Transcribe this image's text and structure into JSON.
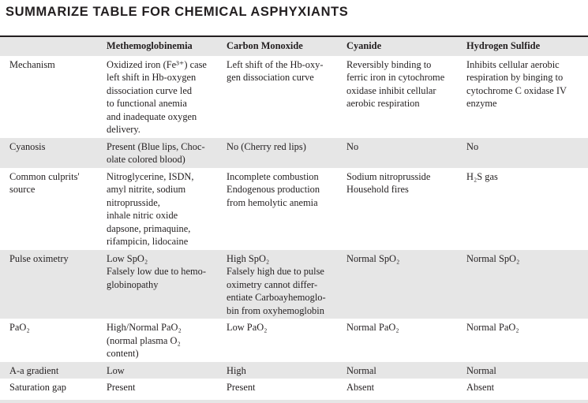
{
  "title": "SUMMARIZE TABLE FOR CHEMICAL ASPHYXIANTS",
  "colors": {
    "row_shade": "#e6e6e6",
    "text": "#231f20"
  },
  "table": {
    "headers": [
      "",
      "Methemoglobinemia",
      "Carbon Monoxide",
      "Cyanide",
      "Hydrogen Sulfide"
    ],
    "rows": [
      {
        "shade": false,
        "cells": [
          "Mechanism",
          "Oxidized iron (Fe³⁺) case\nleft shift in Hb-oxygen\ndissociation curve led\nto functional anemia\nand inadequate oxygen\ndelivery.",
          "Left shift of the Hb-oxy-\ngen dissociation curve",
          "Reversibly binding to\nferric iron in cytochrome\noxidase inhibit cellular\naerobic respiration",
          "Inhibits cellular aerobic\nrespiration by binging to\ncytochrome C oxidase IV\nenzyme"
        ]
      },
      {
        "shade": true,
        "cells": [
          "Cyanosis",
          "Present (Blue lips, Choc-\nolate colored blood)",
          "No (Cherry red lips)",
          "No",
          "No"
        ]
      },
      {
        "shade": false,
        "cells": [
          "Common culprits'\nsource",
          "Nitroglycerine, ISDN,\namyl nitrite, sodium\nnitroprusside,\ninhale nitric oxide\ndapsone, primaquine,\nrifampicin, lidocaine",
          "Incomplete combustion\nEndogenous production\nfrom hemolytic anemia",
          "Sodium nitroprusside\nHousehold fires",
          "H₂S gas"
        ]
      },
      {
        "shade": true,
        "cells": [
          "Pulse oximetry",
          "Low SpO₂\nFalsely low due to hemo-\nglobinopathy",
          "High SpO₂\nFalsely high due to pulse\noximetry cannot differ-\nentiate Carboayhemoglo-\nbin from oxyhemoglobin",
          "Normal SpO₂",
          "Normal SpO₂"
        ]
      },
      {
        "shade": false,
        "cells": [
          "PaO₂",
          "High/Normal PaO₂\n(normal plasma O₂\ncontent)",
          "Low PaO₂",
          "Normal PaO₂",
          "Normal PaO₂"
        ]
      },
      {
        "shade": true,
        "cells": [
          "A-a gradient",
          "Low",
          "High",
          "Normal",
          "Normal"
        ]
      },
      {
        "shade": false,
        "cells": [
          "Saturation gap",
          "Present",
          "Present",
          "Absent",
          "Absent"
        ]
      }
    ]
  }
}
